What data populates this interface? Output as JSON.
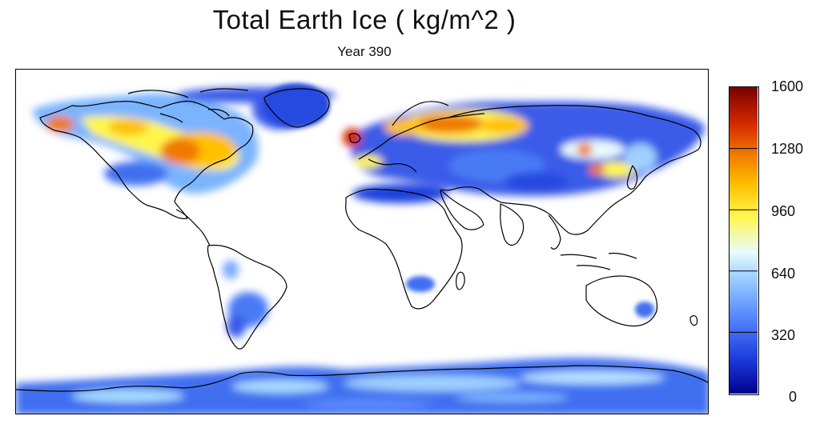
{
  "title": "Total Earth Ice ( kg/m^2 )",
  "subtitle": "Year 390",
  "map": {
    "projection": "equirectangular world",
    "background_color": "#ffffff",
    "coastline_color": "#000000",
    "variable": "ice mass per area"
  },
  "colorbar": {
    "min": 0,
    "max": 1600,
    "ticks": [
      "1600",
      "1280",
      "960",
      "640",
      "320",
      "0"
    ],
    "colors": [
      "#00008f",
      "#1f3fe0",
      "#5b8cff",
      "#9fd0ff",
      "#e8fbff",
      "#fff64a",
      "#ffc000",
      "#f07a00",
      "#d42a00",
      "#7a0000"
    ]
  }
}
